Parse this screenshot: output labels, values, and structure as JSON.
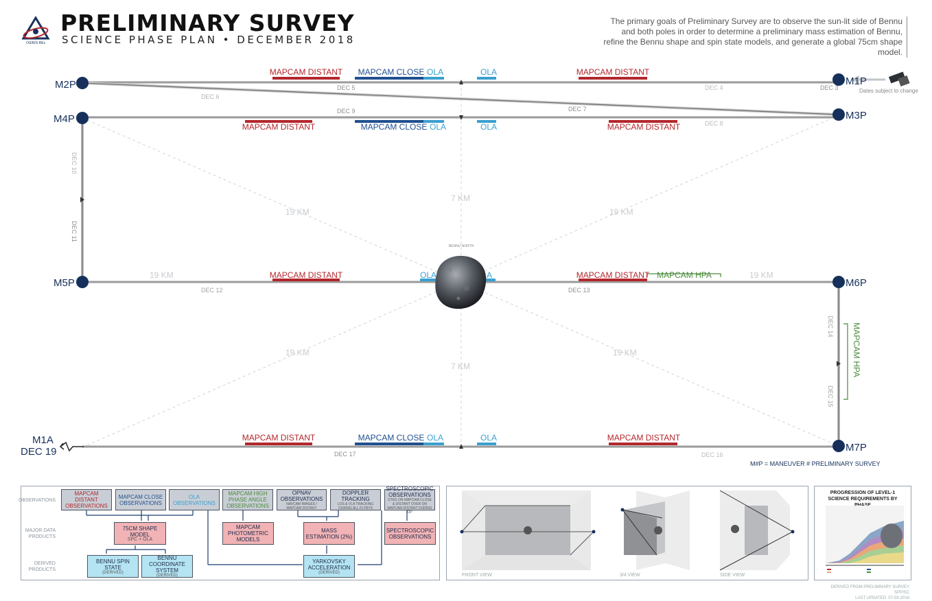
{
  "header": {
    "logo_text": "OSIRIS-REx",
    "title": "PRELIMINARY SURVEY",
    "subtitle": "SCIENCE PHASE PLAN • DECEMBER 2018",
    "description": "The primary goals of Preliminary Survey are to observe the sun-lit side of Bennu and both poles in order to determine a preliminary mass estimation of Bennu, refine the Bennu shape and spin state models, and generate a global 75cm shape model."
  },
  "colors": {
    "navy": "#16305b",
    "red": "#b3272d",
    "blue": "#1f4f8f",
    "cyan": "#3aa0d0",
    "green": "#4a8a3a",
    "track": "#9b9b9b"
  },
  "maneuvers": {
    "m1p": "M1P",
    "m2p": "M2P",
    "m3p": "M3P",
    "m4p": "M4P",
    "m5p": "M5P",
    "m6p": "M6P",
    "m7p": "M7P",
    "m1a": "M1A",
    "m1a_date": "DEC 19"
  },
  "dates": {
    "dec3": "DEC 3",
    "dec4": "DEC 4",
    "dec5": "DEC 5",
    "dec6": "DEC 6",
    "dec7": "DEC 7",
    "dec8": "DEC 8",
    "dec9": "DEC 9",
    "dec10": "DEC 10",
    "dec11": "DEC 11",
    "dec12": "DEC 12",
    "dec13": "DEC 13",
    "dec14": "DEC 14",
    "dec15": "DEC 15",
    "dec16": "DEC 16",
    "dec17": "DEC 17"
  },
  "obs": {
    "mapcam_distant": "MAPCAM DISTANT",
    "mapcam_close": "MAPCAM CLOSE",
    "ola": "OLA",
    "mapcam_hpa": "MAPCAM HPA"
  },
  "distances": {
    "d19": "19 KM",
    "d7": "7 KM"
  },
  "bennu_north": "BENNU NORTH",
  "dates_note": "Dates subject to change",
  "legend_maneuver": "M#P = MANEUVER # PRELIMINARY SURVEY",
  "flow": {
    "row_observations": "OBSERVATIONS",
    "row_products": "MAJOR DATA PRODUCTS",
    "row_derived": "DERIVED PRODUCTS",
    "b_mapcam_distant": "MAPCAM DISTANT OBSERVATIONS",
    "b_mapcam_close": "MAPCAM CLOSE OBSERVATIONS",
    "b_ola": "OLA OBSERVATIONS",
    "b_mapcam_hpa": "MAPCAM HIGH PHASE ANGLE OBSERVATIONS",
    "b_opnav": "OPNAV OBSERVATIONS",
    "b_opnav_sub": "NAVCAM IMAGES / MAPCAM DISTANT",
    "b_doppler": "DOPPLER TRACKING",
    "b_doppler_sub": "LOS & VLA TRACKING DURING ALL FLYBYS",
    "b_spectro": "SPECTROSCOPIC OBSERVATIONS",
    "b_spectro_sub": "OTES ON MAPCAM CLOSE & DISTANT OVER ON MAPCAM DISTANT DURING OP",
    "p_shape": "75CM SHAPE MODEL",
    "p_shape_sub": "SPC + OLA",
    "p_photometric": "MAPCAM PHOTOMETRIC MODELS",
    "p_mass": "MASS ESTIMATION (2%)",
    "p_spectro": "SPECTROSCOPIC OBSERVATIONS",
    "d_spin": "BENNU SPIN STATE",
    "d_spin_sub": "(DERIVED)",
    "d_coord": "BENNU COORDINATE SYSTEM",
    "d_coord_sub": "(DERIVED)",
    "d_yark": "YARKOVSKY ACCELERATION",
    "d_yark_sub": "(DERIVED)"
  },
  "views": {
    "front": "FRONT VIEW",
    "three_quarter": "3/4 VIEW",
    "side": "SIDE VIEW"
  },
  "progress": {
    "title": "PROGRESSION OF LEVEL-1 SCIENCE REQUIREMENTS BY PHASE"
  },
  "footer": {
    "line1": "DERIVED FROM PRELIMINARY SURVEY SPP/SC",
    "line2": "LAST UPDATED: 07-03-2018"
  }
}
